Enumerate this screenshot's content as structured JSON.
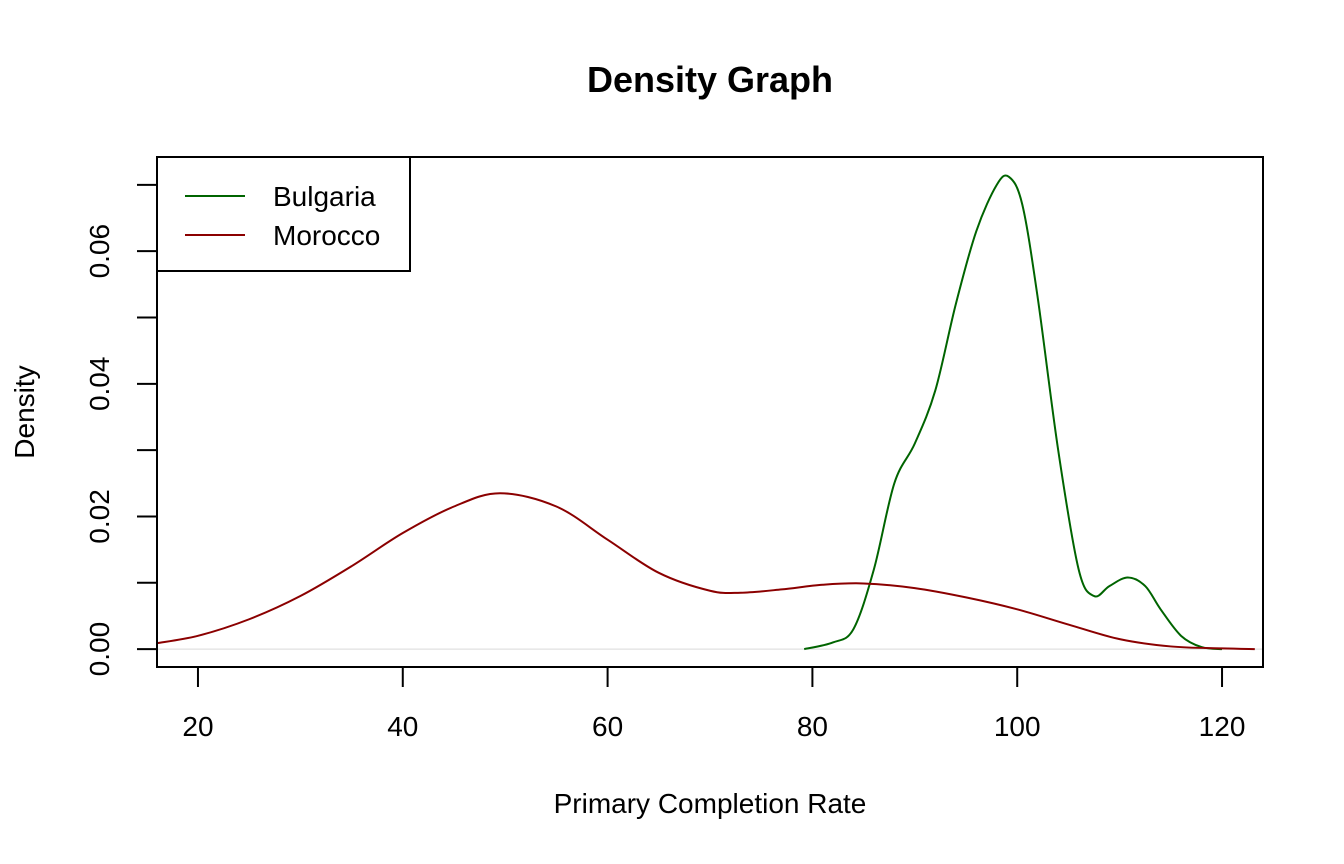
{
  "chart_data": {
    "type": "line",
    "title": "Density Graph",
    "xlabel": "Primary Completion Rate",
    "ylabel": "Density",
    "xlim": [
      16,
      124
    ],
    "ylim": [
      -0.0027,
      0.0742
    ],
    "x_ticks": [
      20,
      40,
      60,
      80,
      100,
      120
    ],
    "x_tick_labels": [
      "20",
      "40",
      "60",
      "80",
      "100",
      "120"
    ],
    "y_ticks": [
      0.0,
      0.01,
      0.02,
      0.03,
      0.04,
      0.05,
      0.06,
      0.07
    ],
    "y_tick_labels": [
      "0.00",
      "",
      "0.02",
      "",
      "0.04",
      "",
      "0.06",
      ""
    ],
    "grid": false,
    "legend_position": "top-left",
    "baseline_color": "#d9d9d9",
    "series": [
      {
        "name": "Bulgaria",
        "color": "#006400",
        "x": [
          79.2,
          82,
          84,
          86,
          88,
          90,
          92,
          94,
          96,
          98,
          99.2,
          100.5,
          102,
          104,
          106,
          107.5,
          109,
          110.8,
          112.5,
          114,
          116,
          118,
          120
        ],
        "y": [
          0.0,
          0.001,
          0.003,
          0.012,
          0.025,
          0.031,
          0.039,
          0.052,
          0.063,
          0.07,
          0.0712,
          0.067,
          0.053,
          0.03,
          0.012,
          0.008,
          0.0095,
          0.0108,
          0.0095,
          0.006,
          0.002,
          0.0003,
          0.0
        ]
      },
      {
        "name": "Morocco",
        "color": "#8b0000",
        "x": [
          16,
          20,
          25,
          30,
          35,
          40,
          45,
          49.5,
          55,
          60,
          65,
          70,
          73,
          77,
          81,
          85,
          90,
          95,
          100,
          105,
          110,
          115,
          120,
          123.2
        ],
        "y": [
          0.0009,
          0.002,
          0.0045,
          0.008,
          0.0125,
          0.0175,
          0.0215,
          0.0235,
          0.0215,
          0.0165,
          0.0115,
          0.0088,
          0.0085,
          0.009,
          0.0097,
          0.0099,
          0.0092,
          0.0078,
          0.006,
          0.0037,
          0.0015,
          0.0004,
          0.0001,
          0.0
        ]
      }
    ]
  }
}
